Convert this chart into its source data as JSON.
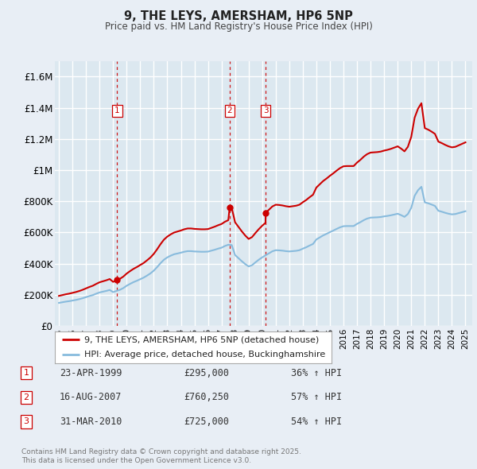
{
  "title": "9, THE LEYS, AMERSHAM, HP6 5NP",
  "subtitle": "Price paid vs. HM Land Registry's House Price Index (HPI)",
  "bg_color": "#e8eef5",
  "plot_bg_color": "#dce8f0",
  "grid_color": "#ffffff",
  "line1_color": "#cc0000",
  "line2_color": "#88bbdd",
  "sale_marker_color": "#cc0000",
  "sale_dline_color": "#cc0000",
  "ylim": [
    0,
    1700000
  ],
  "yticks": [
    0,
    200000,
    400000,
    600000,
    800000,
    1000000,
    1200000,
    1400000,
    1600000
  ],
  "ytick_labels": [
    "£0",
    "£200K",
    "£400K",
    "£600K",
    "£800K",
    "£1M",
    "£1.2M",
    "£1.4M",
    "£1.6M"
  ],
  "xlim_start": 1994.7,
  "xlim_end": 2025.5,
  "xtick_years": [
    1995,
    1996,
    1997,
    1998,
    1999,
    2000,
    2001,
    2002,
    2003,
    2004,
    2005,
    2006,
    2007,
    2008,
    2009,
    2010,
    2011,
    2012,
    2013,
    2014,
    2015,
    2016,
    2017,
    2018,
    2019,
    2020,
    2021,
    2022,
    2023,
    2024,
    2025
  ],
  "sales": [
    {
      "num": 1,
      "date_label": "23-APR-1999",
      "price": 295000,
      "pct": "36%",
      "year_x": 1999.3
    },
    {
      "num": 2,
      "date_label": "16-AUG-2007",
      "price": 760250,
      "pct": "57%",
      "year_x": 2007.6
    },
    {
      "num": 3,
      "date_label": "31-MAR-2010",
      "price": 725000,
      "pct": "54%",
      "year_x": 2010.25
    }
  ],
  "legend_label1": "9, THE LEYS, AMERSHAM, HP6 5NP (detached house)",
  "legend_label2": "HPI: Average price, detached house, Buckinghamshire",
  "footer1": "Contains HM Land Registry data © Crown copyright and database right 2025.",
  "footer2": "This data is licensed under the Open Government Licence v3.0.",
  "hpi_line_data": {
    "years": [
      1995.0,
      1995.25,
      1995.5,
      1995.75,
      1996.0,
      1996.25,
      1996.5,
      1996.75,
      1997.0,
      1997.25,
      1997.5,
      1997.75,
      1998.0,
      1998.25,
      1998.5,
      1998.75,
      1999.0,
      1999.25,
      1999.5,
      1999.75,
      2000.0,
      2000.25,
      2000.5,
      2000.75,
      2001.0,
      2001.25,
      2001.5,
      2001.75,
      2002.0,
      2002.25,
      2002.5,
      2002.75,
      2003.0,
      2003.25,
      2003.5,
      2003.75,
      2004.0,
      2004.25,
      2004.5,
      2004.75,
      2005.0,
      2005.25,
      2005.5,
      2005.75,
      2006.0,
      2006.25,
      2006.5,
      2006.75,
      2007.0,
      2007.25,
      2007.5,
      2007.75,
      2008.0,
      2008.25,
      2008.5,
      2008.75,
      2009.0,
      2009.25,
      2009.5,
      2009.75,
      2010.0,
      2010.25,
      2010.5,
      2010.75,
      2011.0,
      2011.25,
      2011.5,
      2011.75,
      2012.0,
      2012.25,
      2012.5,
      2012.75,
      2013.0,
      2013.25,
      2013.5,
      2013.75,
      2014.0,
      2014.25,
      2014.5,
      2014.75,
      2015.0,
      2015.25,
      2015.5,
      2015.75,
      2016.0,
      2016.25,
      2016.5,
      2016.75,
      2017.0,
      2017.25,
      2017.5,
      2017.75,
      2018.0,
      2018.25,
      2018.5,
      2018.75,
      2019.0,
      2019.25,
      2019.5,
      2019.75,
      2020.0,
      2020.25,
      2020.5,
      2020.75,
      2021.0,
      2021.25,
      2021.5,
      2021.75,
      2022.0,
      2022.25,
      2022.5,
      2022.75,
      2023.0,
      2023.25,
      2023.5,
      2023.75,
      2024.0,
      2024.25,
      2024.5,
      2024.75,
      2025.0
    ],
    "values": [
      148000,
      152000,
      156000,
      159000,
      163000,
      167000,
      172000,
      178000,
      185000,
      192000,
      198000,
      207000,
      215000,
      220000,
      225000,
      231000,
      217000,
      225000,
      232000,
      243000,
      258000,
      270000,
      281000,
      290000,
      300000,
      310000,
      323000,
      337000,
      355000,
      378000,
      403000,
      425000,
      440000,
      451000,
      460000,
      465000,
      470000,
      476000,
      480000,
      480000,
      478000,
      477000,
      476000,
      476000,
      477000,
      483000,
      489000,
      496000,
      502000,
      513000,
      521000,
      519000,
      455000,
      435000,
      415000,
      397000,
      382000,
      390000,
      408000,
      425000,
      440000,
      453000,
      466000,
      479000,
      486000,
      485000,
      483000,
      480000,
      478000,
      480000,
      482000,
      486000,
      496000,
      505000,
      516000,
      526000,
      555000,
      568000,
      581000,
      591000,
      602000,
      612000,
      623000,
      633000,
      640000,
      641000,
      641000,
      641000,
      655000,
      666000,
      679000,
      689000,
      695000,
      696000,
      697000,
      699000,
      703000,
      706000,
      710000,
      715000,
      720000,
      711000,
      700000,
      718000,
      758000,
      835000,
      871000,
      893000,
      793000,
      787000,
      779000,
      770000,
      739000,
      733000,
      726000,
      720000,
      716000,
      718000,
      724000,
      730000,
      736000
    ]
  }
}
